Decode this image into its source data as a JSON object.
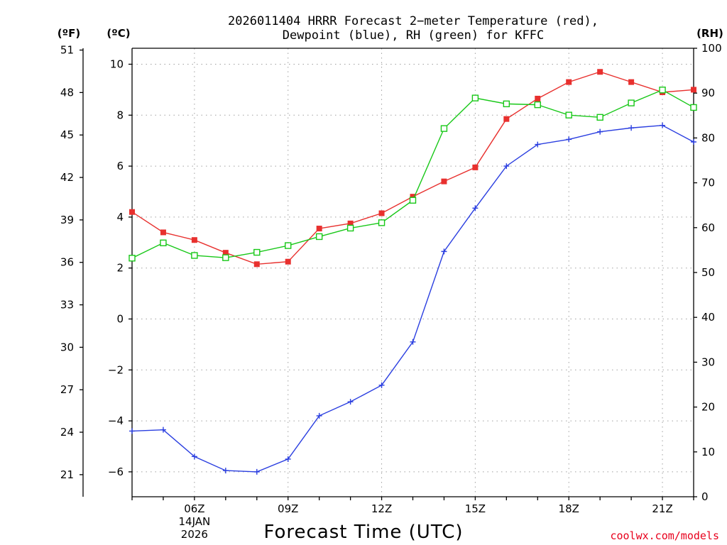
{
  "page_title": "2026011404 HRRR Forecast 2-meter Temperature (red), Dewpoint (blue), RH (green) for KFFC",
  "credit": "coolwx.com/models",
  "colors": {
    "temperature": "#e8302e",
    "dewpoint": "#2a3ee0",
    "rh": "#18c818",
    "grid": "#a0a0a0",
    "axis": "#000000"
  },
  "chart_data": {
    "type": "line",
    "title_lines": [
      "2026011404 HRRR Forecast 2−meter Temperature (red),",
      "Dewpoint (blue), RH (green) for KFFC"
    ],
    "xlabel": "Forecast Time (UTC)",
    "x": [
      4,
      5,
      6,
      7,
      8,
      9,
      10,
      11,
      12,
      13,
      14,
      15,
      16,
      17,
      18,
      19,
      20,
      21,
      22
    ],
    "xlim": [
      4,
      22
    ],
    "xticks": [
      {
        "value": 6,
        "label": "06Z",
        "sub": [
          "14JAN",
          "2026"
        ]
      },
      {
        "value": 9,
        "label": "09Z",
        "sub": []
      },
      {
        "value": 12,
        "label": "12Z",
        "sub": []
      },
      {
        "value": 15,
        "label": "15Z",
        "sub": []
      },
      {
        "value": 18,
        "label": "18Z",
        "sub": []
      },
      {
        "value": 21,
        "label": "21Z",
        "sub": []
      }
    ],
    "axes": {
      "left_f": {
        "unit_label": "(ºF)",
        "ticks": [
          "51",
          "48",
          "45",
          "42",
          "39",
          "36",
          "33",
          "30",
          "27",
          "24",
          "21"
        ],
        "values": [
          51,
          48,
          45,
          42,
          39,
          36,
          33,
          30,
          27,
          24,
          21
        ]
      },
      "left_c": {
        "unit_label": "(ºC)",
        "ticks": [
          "10",
          "8",
          "6",
          "4",
          "2",
          "0",
          "−2",
          "−4",
          "−6"
        ],
        "values": [
          10,
          8,
          6,
          4,
          2,
          0,
          -2,
          -4,
          -6
        ],
        "ylim": [
          -7,
          10.6
        ]
      },
      "right_rh": {
        "unit_label": "(RH)",
        "ticks": [
          "100",
          "90",
          "80",
          "70",
          "60",
          "50",
          "40",
          "30",
          "20",
          "10",
          "0"
        ],
        "values": [
          100,
          90,
          80,
          70,
          60,
          50,
          40,
          30,
          20,
          10,
          0
        ],
        "ylim": [
          0,
          100
        ]
      }
    },
    "series": [
      {
        "name": "Temperature",
        "axis": "c",
        "marker": "filled-square",
        "values": [
          4.2,
          3.4,
          3.1,
          2.6,
          2.15,
          2.25,
          3.55,
          3.75,
          4.15,
          4.8,
          5.4,
          5.95,
          7.85,
          8.65,
          9.3,
          9.7,
          9.3,
          8.9,
          9.0
        ]
      },
      {
        "name": "Dewpoint",
        "axis": "c",
        "marker": "plus",
        "values": [
          -4.4,
          -4.35,
          -5.4,
          -5.95,
          -6.0,
          -5.5,
          -3.8,
          -3.25,
          -2.6,
          -0.9,
          2.65,
          4.35,
          6.0,
          6.85,
          7.05,
          7.35,
          7.5,
          7.6,
          6.95
        ]
      },
      {
        "name": "RH",
        "axis": "rh",
        "marker": "open-square",
        "values": [
          53.2,
          56.6,
          53.8,
          53.3,
          54.5,
          56.0,
          58.0,
          59.9,
          61.1,
          66.1,
          82.1,
          88.9,
          87.6,
          87.4,
          85.1,
          84.6,
          87.8,
          90.7,
          86.8
        ]
      }
    ]
  }
}
